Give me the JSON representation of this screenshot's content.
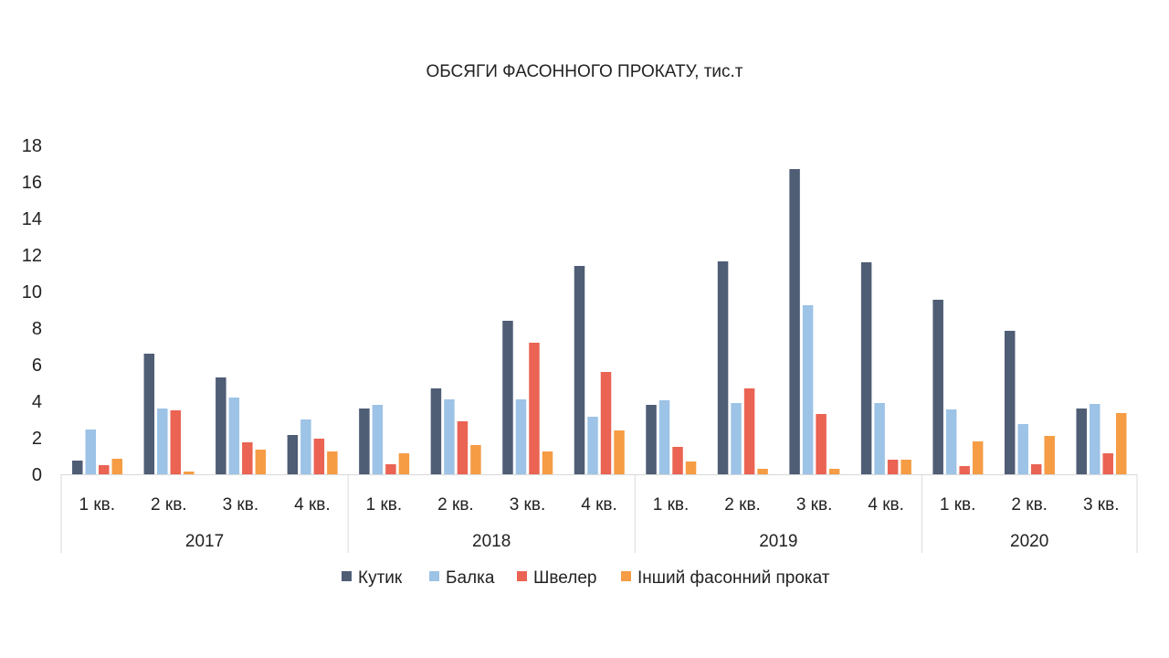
{
  "chart_data": {
    "type": "bar",
    "title": "ОБСЯГИ ФАСОННОГО ПРОКАТУ, тис.т",
    "xlabel": "",
    "ylabel": "",
    "ylim": [
      0,
      18
    ],
    "yticks": [
      "0",
      "2",
      "4",
      "6",
      "8",
      "10",
      "12",
      "14",
      "16",
      "18"
    ],
    "grid": false,
    "legend_position": "bottom",
    "groups": [
      {
        "label": "2017",
        "categories": [
          "1 кв.",
          "2 кв.",
          "3 кв.",
          "4 кв."
        ]
      },
      {
        "label": "2018",
        "categories": [
          "1 кв.",
          "2 кв.",
          "3 кв.",
          "4 кв."
        ]
      },
      {
        "label": "2019",
        "categories": [
          "1 кв.",
          "2 кв.",
          "3 кв.",
          "4 кв."
        ]
      },
      {
        "label": "2020",
        "categories": [
          "1 кв.",
          "2 кв.",
          "3 кв."
        ]
      }
    ],
    "series": [
      {
        "name": "Кутик",
        "color": "#4f5d75",
        "values": [
          0.75,
          6.6,
          5.3,
          2.15,
          3.6,
          4.7,
          8.4,
          11.4,
          3.8,
          11.65,
          16.7,
          11.6,
          9.55,
          7.85,
          3.6
        ]
      },
      {
        "name": "Балка",
        "color": "#9dc3e6",
        "values": [
          2.45,
          3.6,
          4.2,
          3.0,
          3.8,
          4.1,
          4.1,
          3.15,
          4.05,
          3.9,
          9.25,
          3.9,
          3.55,
          2.75,
          3.85
        ]
      },
      {
        "name": "Швелер",
        "color": "#ea6353",
        "values": [
          0.5,
          3.5,
          1.75,
          1.95,
          0.55,
          2.9,
          7.2,
          5.6,
          1.5,
          4.7,
          3.3,
          0.8,
          0.45,
          0.55,
          1.15
        ]
      },
      {
        "name": "Інший фасонний прокат",
        "color": "#f59c45",
        "values": [
          0.85,
          0.15,
          1.35,
          1.25,
          1.15,
          1.6,
          1.25,
          2.4,
          0.7,
          0.3,
          0.3,
          0.8,
          1.8,
          2.1,
          3.35
        ]
      }
    ]
  }
}
